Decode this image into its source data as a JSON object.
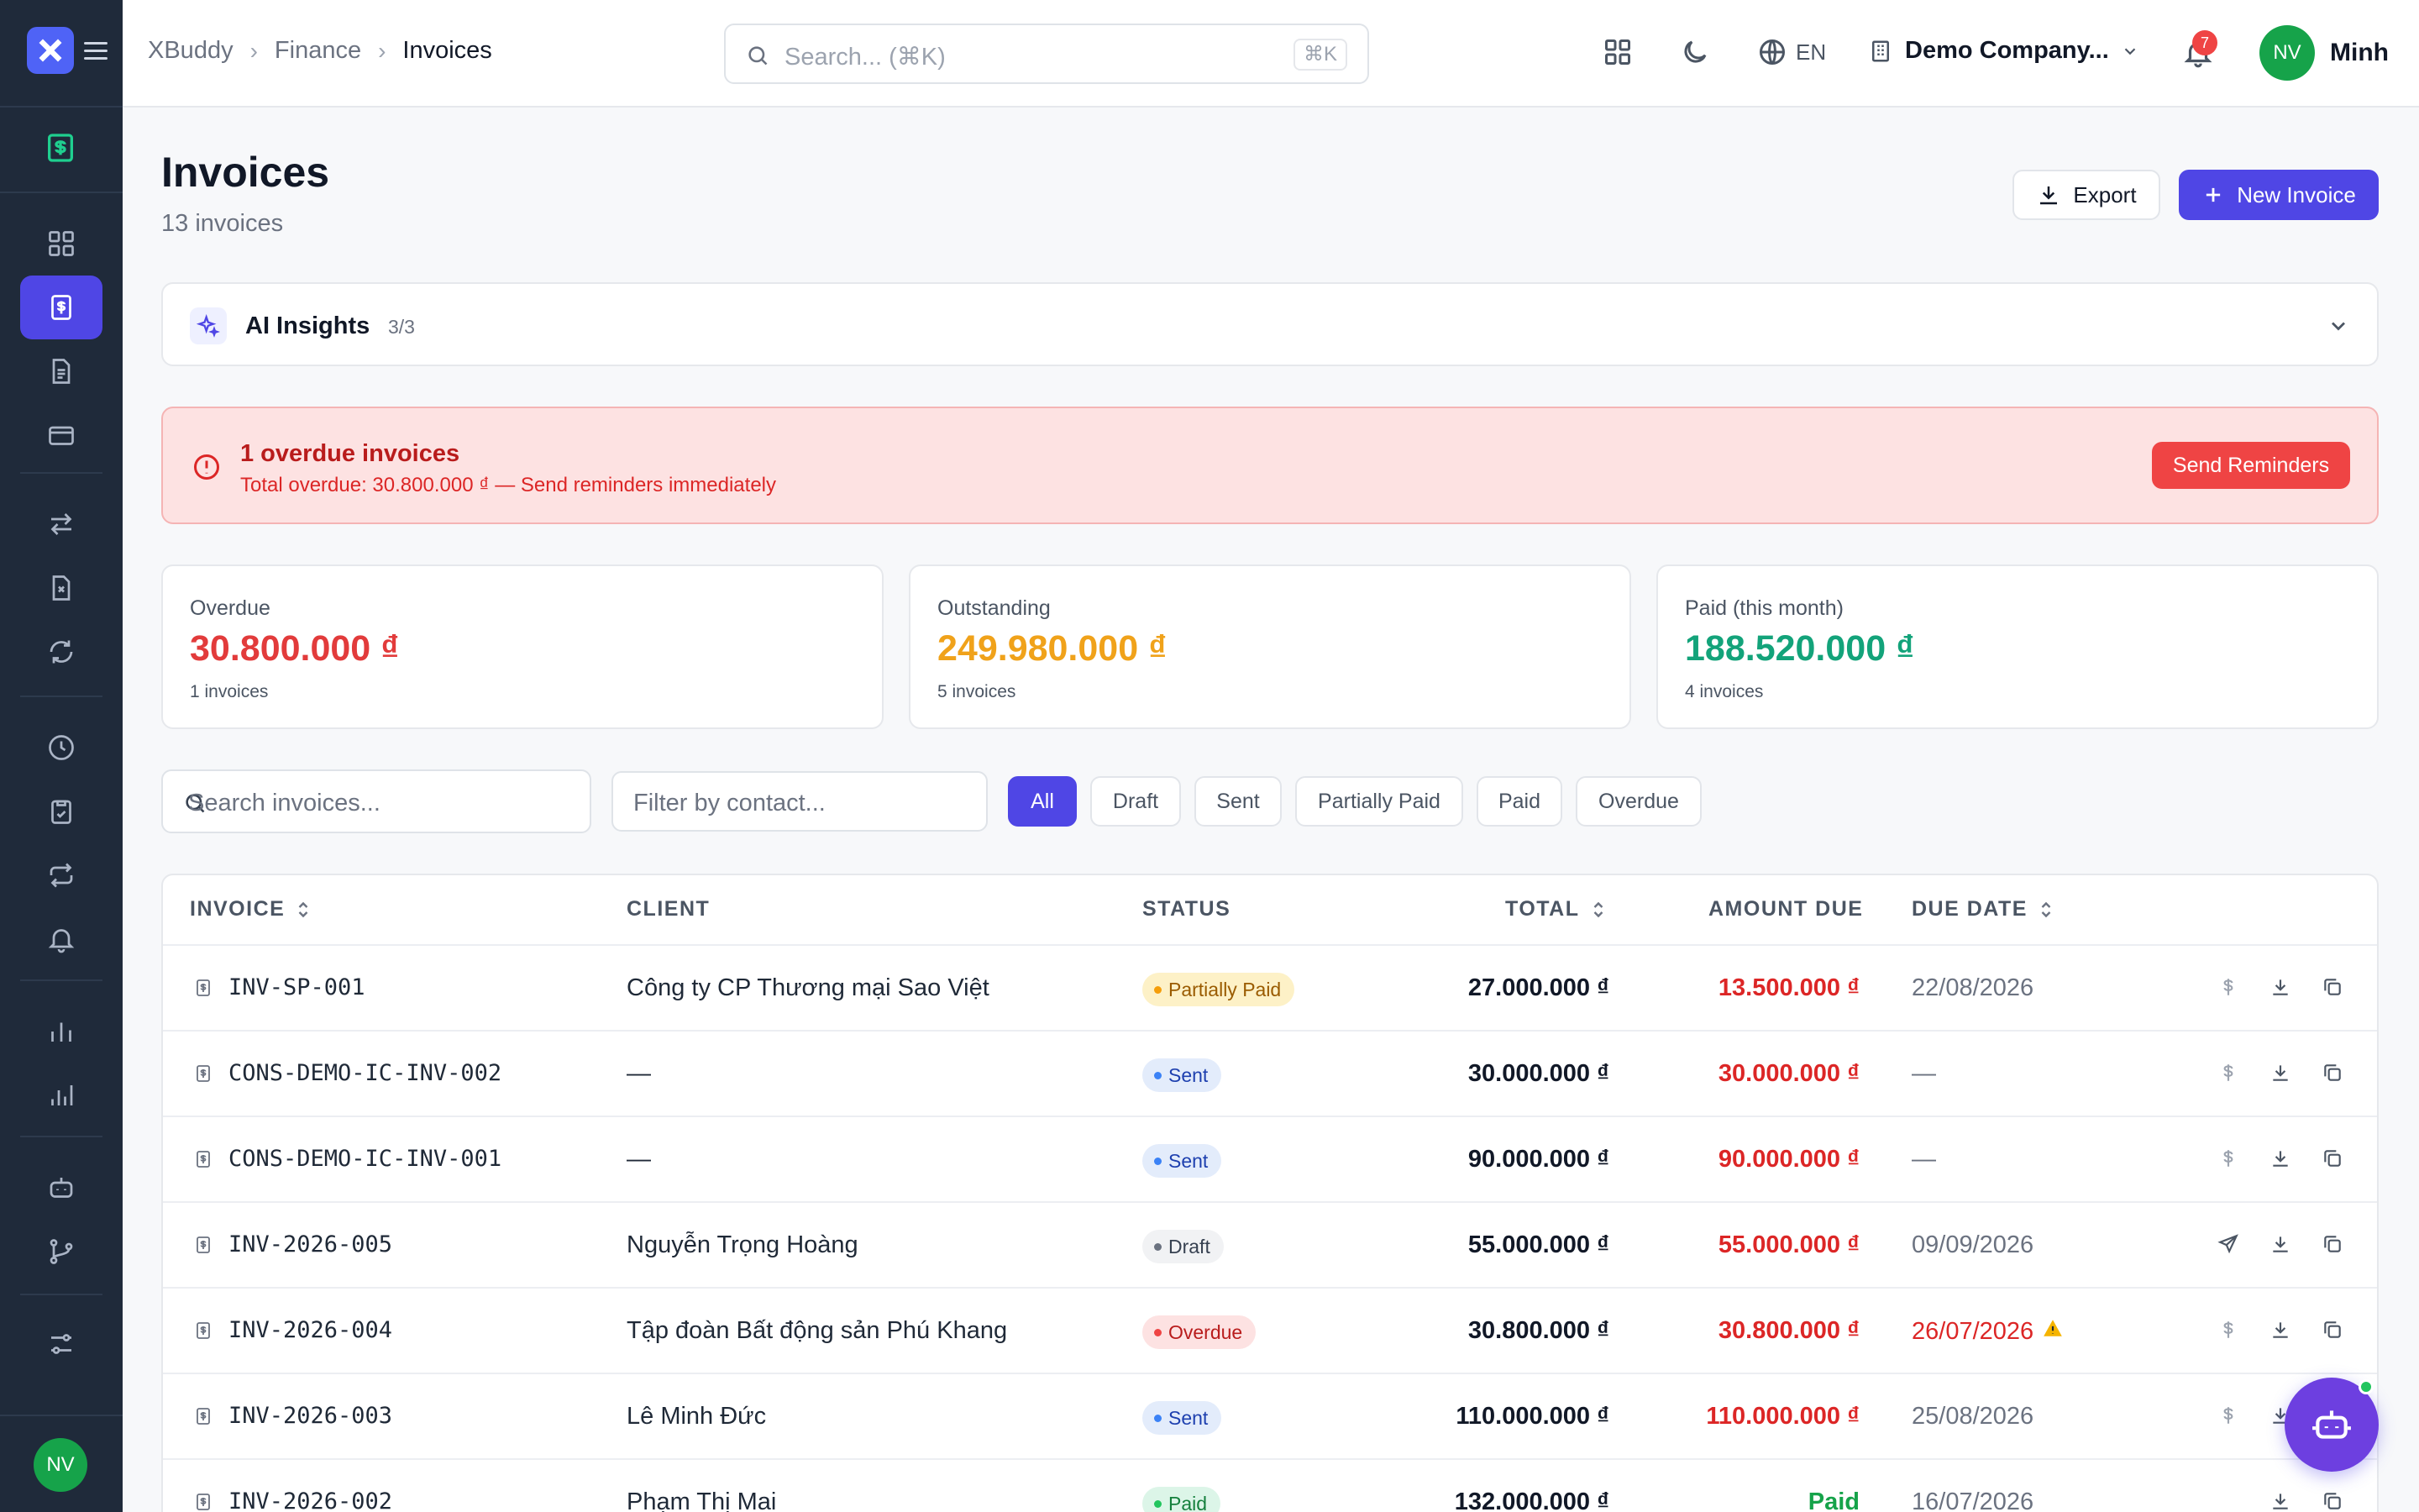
{
  "sidebar": {
    "items": [
      {
        "icon": "dashboard-grid-icon"
      },
      {
        "icon": "invoice-icon",
        "active": true
      },
      {
        "icon": "document-icon"
      },
      {
        "icon": "credit-card-icon"
      },
      {
        "icon": "transfer-arrows-icon"
      },
      {
        "icon": "file-x-icon"
      },
      {
        "icon": "refresh-icon"
      },
      {
        "icon": "clock-icon"
      },
      {
        "icon": "clipboard-check-icon"
      },
      {
        "icon": "repeat-icon"
      },
      {
        "icon": "bell-icon"
      },
      {
        "icon": "bar-chart-icon"
      },
      {
        "icon": "bar-chart-alt-icon"
      },
      {
        "icon": "robot-icon"
      },
      {
        "icon": "git-branch-icon"
      },
      {
        "icon": "sliders-icon"
      }
    ],
    "avatar": "NV"
  },
  "topbar": {
    "breadcrumb": [
      "XBuddy",
      "Finance",
      "Invoices"
    ],
    "search_placeholder": "Search... (⌘K)",
    "search_shortcut": "⌘K",
    "lang": "EN",
    "company": "Demo Company...",
    "notifications": "7",
    "avatar": "NV",
    "user": "Minh"
  },
  "page": {
    "title": "Invoices",
    "subtitle": "13 invoices",
    "export_label": "Export",
    "new_label": "New Invoice"
  },
  "ai": {
    "title": "AI Insights",
    "count": "3/3"
  },
  "alert": {
    "title": "1 overdue invoices",
    "text": "Total overdue: 30.800.000 ₫ — Send reminders immediately",
    "button": "Send Reminders"
  },
  "stats": [
    {
      "label": "Overdue",
      "value": "30.800.000 ₫",
      "count": "1 invoices",
      "color": "#e23b3b"
    },
    {
      "label": "Outstanding",
      "value": "249.980.000 ₫",
      "count": "5 invoices",
      "color": "#f0a21a"
    },
    {
      "label": "Paid (this month)",
      "value": "188.520.000 ₫",
      "count": "4 invoices",
      "color": "#13a37a"
    }
  ],
  "filters": {
    "search_placeholder": "Search invoices...",
    "contact_placeholder": "Filter by contact...",
    "chips": [
      "All",
      "Draft",
      "Sent",
      "Partially Paid",
      "Paid",
      "Overdue"
    ],
    "active_chip": "All"
  },
  "table": {
    "headers": [
      "INVOICE",
      "CLIENT",
      "STATUS",
      "TOTAL",
      "AMOUNT DUE",
      "DUE DATE"
    ],
    "rows": [
      {
        "invoice": "INV-SP-001",
        "client": "Công ty CP Thương mại Sao Việt",
        "status": "Partially Paid",
        "total": "27.000.000 ₫",
        "due": "13.500.000 ₫",
        "date": "22/08/2026"
      },
      {
        "invoice": "CONS-DEMO-IC-INV-002",
        "client": "—",
        "status": "Sent",
        "total": "30.000.000 ₫",
        "due": "30.000.000 ₫",
        "date": "—"
      },
      {
        "invoice": "CONS-DEMO-IC-INV-001",
        "client": "—",
        "status": "Sent",
        "total": "90.000.000 ₫",
        "due": "90.000.000 ₫",
        "date": "—"
      },
      {
        "invoice": "INV-2026-005",
        "client": "Nguyễn Trọng Hoàng",
        "status": "Draft",
        "total": "55.000.000 ₫",
        "due": "55.000.000 ₫",
        "date": "09/09/2026"
      },
      {
        "invoice": "INV-2026-004",
        "client": "Tập đoàn Bất động sản Phú Khang",
        "status": "Overdue",
        "total": "30.800.000 ₫",
        "due": "30.800.000 ₫",
        "date": "26/07/2026"
      },
      {
        "invoice": "INV-2026-003",
        "client": "Lê Minh Đức",
        "status": "Sent",
        "total": "110.000.000 ₫",
        "due": "110.000.000 ₫",
        "date": "25/08/2026"
      },
      {
        "invoice": "INV-2026-002",
        "client": "Phạm Thị Mai",
        "status": "Paid",
        "total": "132.000.000 ₫",
        "due": "Paid",
        "date": "16/07/2026"
      }
    ]
  }
}
